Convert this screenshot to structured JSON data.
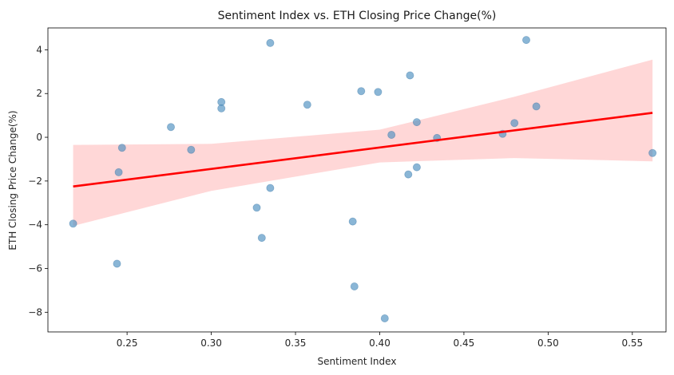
{
  "chart_data": {
    "type": "scatter",
    "title": "Sentiment Index vs. ETH Closing Price Change(%)",
    "xlabel": "Sentiment Index",
    "ylabel": "ETH Closing Price Change(%)",
    "xlim": [
      0.203,
      0.57
    ],
    "ylim": [
      -8.9,
      5.0
    ],
    "x_ticks": [
      0.25,
      0.3,
      0.35,
      0.4,
      0.45,
      0.5,
      0.55
    ],
    "x_tick_labels": [
      "0.25",
      "0.30",
      "0.35",
      "0.40",
      "0.45",
      "0.50",
      "0.55"
    ],
    "y_ticks": [
      -8,
      -6,
      -4,
      -2,
      0,
      2,
      4
    ],
    "y_tick_labels": [
      "−8",
      "−6",
      "−4",
      "−2",
      "0",
      "2",
      "4"
    ],
    "grid": false,
    "points": [
      {
        "x": 0.218,
        "y": -3.95
      },
      {
        "x": 0.244,
        "y": -5.78
      },
      {
        "x": 0.245,
        "y": -1.6
      },
      {
        "x": 0.247,
        "y": -0.48
      },
      {
        "x": 0.276,
        "y": 0.47
      },
      {
        "x": 0.288,
        "y": -0.57
      },
      {
        "x": 0.306,
        "y": 1.61
      },
      {
        "x": 0.306,
        "y": 1.32
      },
      {
        "x": 0.327,
        "y": -3.22
      },
      {
        "x": 0.33,
        "y": -4.6
      },
      {
        "x": 0.335,
        "y": 4.31
      },
      {
        "x": 0.335,
        "y": -2.32
      },
      {
        "x": 0.357,
        "y": 1.49
      },
      {
        "x": 0.384,
        "y": -3.85
      },
      {
        "x": 0.385,
        "y": -6.82
      },
      {
        "x": 0.389,
        "y": 2.11
      },
      {
        "x": 0.399,
        "y": 2.07
      },
      {
        "x": 0.403,
        "y": -8.28
      },
      {
        "x": 0.407,
        "y": 0.11
      },
      {
        "x": 0.417,
        "y": -1.7
      },
      {
        "x": 0.418,
        "y": 2.83
      },
      {
        "x": 0.422,
        "y": 0.69
      },
      {
        "x": 0.422,
        "y": -1.37
      },
      {
        "x": 0.434,
        "y": -0.03
      },
      {
        "x": 0.473,
        "y": 0.16
      },
      {
        "x": 0.48,
        "y": 0.65
      },
      {
        "x": 0.487,
        "y": 4.45
      },
      {
        "x": 0.493,
        "y": 1.41
      },
      {
        "x": 0.562,
        "y": -0.72
      }
    ],
    "regression": {
      "x_start": 0.218,
      "y_start": -2.25,
      "x_end": 0.562,
      "y_end": 1.12
    },
    "confidence_band": {
      "x": [
        0.218,
        0.3,
        0.4,
        0.48,
        0.562
      ],
      "upper": [
        -0.35,
        -0.3,
        0.35,
        1.85,
        3.55
      ],
      "lower": [
        -4.05,
        -2.45,
        -1.15,
        -0.95,
        -1.1
      ]
    },
    "colors": {
      "points": "#4c8fc0",
      "line": "#ff0000",
      "band": "#ffd0d0"
    }
  }
}
